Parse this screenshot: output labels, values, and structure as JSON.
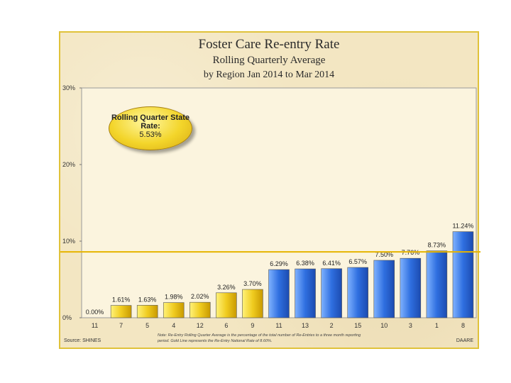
{
  "slide": {
    "title": "Foster Care Re-entry Rate",
    "subtitle": "Rolling Quarterly Average",
    "period": "by Region    Jan 2014 to Mar 2014",
    "source": "Source: SHINES",
    "organization": "DAARE",
    "note": "Note: Re-Entry Rolling Quarter Average is the percentage of the total number of Re-Entries to a three month reporting period. Gold Line represents the Re-Entry National Rate of 8.60%."
  },
  "badge": {
    "title": "Rolling Quarter State Rate:",
    "value": "5.53%"
  },
  "colors": {
    "gold_bar": "#f0cc20",
    "blue_bar": "#2f6fe0",
    "national_line": "#e6b400",
    "plot_bg": "#fbf4de"
  },
  "chart_data": {
    "type": "bar",
    "categories": [
      "11",
      "7",
      "5",
      "4",
      "12",
      "6",
      "9",
      "11",
      "13",
      "2",
      "15",
      "10",
      "3",
      "1",
      "8"
    ],
    "values": [
      0.0,
      1.61,
      1.63,
      1.98,
      2.02,
      3.26,
      3.7,
      6.29,
      6.38,
      6.41,
      6.57,
      7.5,
      7.76,
      8.73,
      11.24
    ],
    "data_labels": [
      "0.00%",
      "1.61%",
      "1.63%",
      "1.98%",
      "2.02%",
      "3.26%",
      "3.70%",
      "6.29%",
      "6.38%",
      "6.41%",
      "6.57%",
      "7.50%",
      "7.76%",
      "8.73%",
      "11.24%"
    ],
    "bar_colors": [
      "gold",
      "gold",
      "gold",
      "gold",
      "gold",
      "gold",
      "gold",
      "blue",
      "blue",
      "blue",
      "blue",
      "blue",
      "blue",
      "blue",
      "blue"
    ],
    "ylim": [
      0,
      30
    ],
    "yticks": [
      0,
      10,
      20,
      30
    ],
    "ytick_labels": [
      "0%",
      "10%",
      "20%",
      "30%"
    ],
    "reference_line": 8.6,
    "grid": false
  }
}
